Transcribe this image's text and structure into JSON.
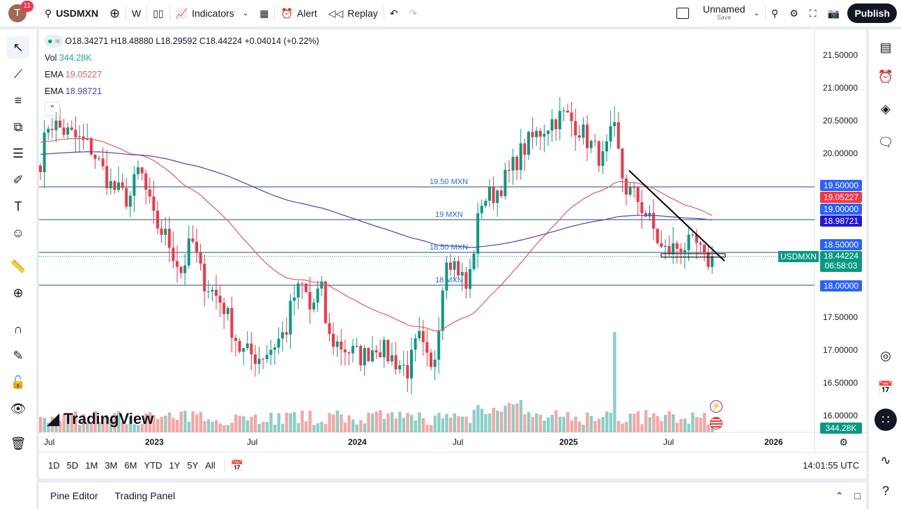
{
  "topbar": {
    "avatar_letter": "T",
    "notifications": "11",
    "symbol": "USDMXN",
    "interval": "W",
    "indicators": "Indicators",
    "alert": "Alert",
    "replay": "Replay",
    "layout_name": "Unnamed",
    "layout_sub": "Save",
    "publish": "Publish"
  },
  "legend": {
    "ohlc": "O18.34271 H18.48880 L18.29592 C18.44224 +0.04014 (+0.22%)",
    "vol_label": "Vol",
    "vol_value": "344.28K",
    "ema1_label": "EMA",
    "ema1_value": "19.05227",
    "ema2_label": "EMA",
    "ema2_value": "18.98721"
  },
  "colors": {
    "up": "#089981",
    "down": "#f23645",
    "ema_fast": "#e05a64",
    "ema_slow": "#4a45b0",
    "level_line": "#2a4a7a",
    "price_tag": "#2962ff"
  },
  "levels": [
    {
      "label": "19.50 MXN",
      "price": "19.50000"
    },
    {
      "label": "19 MXN",
      "price": "19.00000"
    },
    {
      "label": "18.50 MXN",
      "price": "18.50000"
    },
    {
      "label": "18 MXN",
      "price": "18.00000"
    }
  ],
  "price_axis": [
    "21.50000",
    "21.00000",
    "20.50000",
    "20.00000",
    "19.50000",
    "19.00000",
    "18.50000",
    "18.00000",
    "17.50000",
    "17.00000",
    "16.50000",
    "16.00000"
  ],
  "price_tags": {
    "ema1": "19.05227",
    "ema2": "18.98721",
    "symbol": "USDMXN",
    "last": "18.44224",
    "countdown": "06:58:03",
    "volume": "344.28K"
  },
  "time_axis": [
    "Jul",
    "2023",
    "Jul",
    "2024",
    "Jul",
    "2025",
    "Jul",
    "2026"
  ],
  "watermark": "TradingView",
  "timeframes": [
    "1D",
    "5D",
    "1M",
    "3M",
    "6M",
    "YTD",
    "1Y",
    "5Y",
    "All"
  ],
  "clock": "14:01:55 UTC",
  "bottom_tabs": [
    "Pine Editor",
    "Trading Panel"
  ]
}
